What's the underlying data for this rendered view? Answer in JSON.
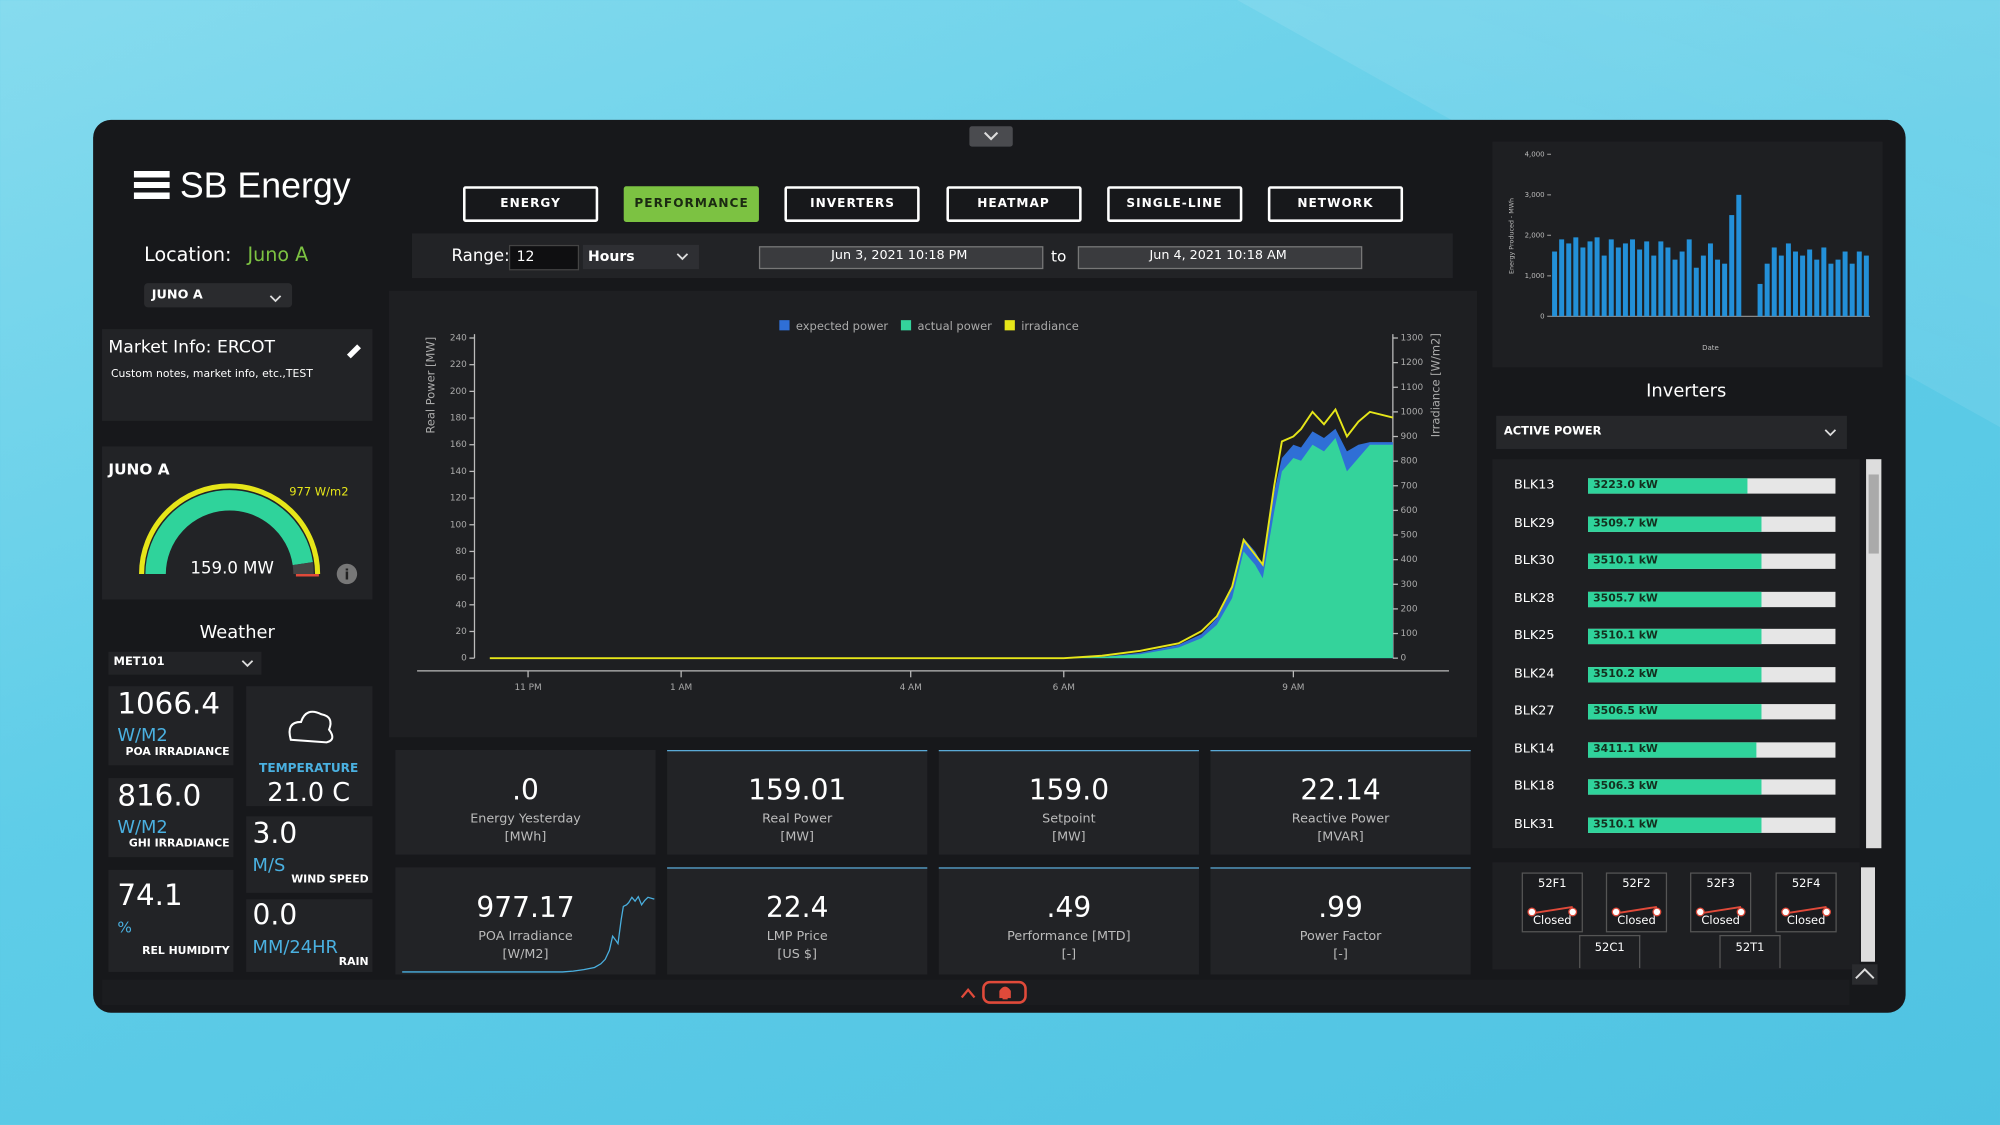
{
  "header": {
    "logo": "SB Energy",
    "location_label": "Location:",
    "location": "Juno A",
    "site": "JUNO A"
  },
  "tabs": {
    "items": [
      "ENERGY",
      "PERFORMANCE",
      "INVERTERS",
      "HEATMAP",
      "SINGLE-LINE",
      "NETWORK"
    ],
    "active": 1
  },
  "range": {
    "label": "Range:",
    "value": "12",
    "unit": "Hours",
    "start": "Jun 3, 2021 10:18 PM",
    "to": "to",
    "end": "Jun 4, 2021 10:18 AM"
  },
  "market": {
    "title": "Market Info: ERCOT",
    "note": "Custom notes, market info, etc.,TEST"
  },
  "gauge": {
    "title": "JUNO A",
    "irradiance": "977 W/m2",
    "power": "159.0 MW"
  },
  "weather": {
    "title": "Weather",
    "station": "MET101",
    "poa": {
      "value": "1066.4",
      "unit": "W/M2",
      "label": "POA IRRADIANCE"
    },
    "ghi": {
      "value": "816.0",
      "unit": "W/M2",
      "label": "GHI IRRADIANCE"
    },
    "humidity": {
      "value": "74.1",
      "unit": "%",
      "label": "REL HUMIDITY"
    },
    "temperature": {
      "label": "TEMPERATURE",
      "value": "21.0 C"
    },
    "wind": {
      "value": "3.0",
      "unit": "M/S",
      "label": "WIND SPEED"
    },
    "rain": {
      "value": "0.0",
      "unit": "MM/24HR",
      "label": "RAIN"
    }
  },
  "stats": [
    {
      "value": ".0",
      "label": "Energy Yesterday",
      "unit": "[MWh]"
    },
    {
      "value": "159.01",
      "label": "Real Power",
      "unit": "[MW]"
    },
    {
      "value": "159.0",
      "label": "Setpoint",
      "unit": "[MW]"
    },
    {
      "value": "22.14",
      "label": "Reactive Power",
      "unit": "[MVAR]"
    },
    {
      "value": "977.17",
      "label": "POA Irradiance",
      "unit": "[W/M2]"
    },
    {
      "value": "22.4",
      "label": "LMP Price",
      "unit": "[US $]"
    },
    {
      "value": ".49",
      "label": "Performance [MTD]",
      "unit": "[-]"
    },
    {
      "value": ".99",
      "label": "Power Factor",
      "unit": "[-]"
    }
  ],
  "chart_data": [
    {
      "type": "area",
      "ylabel": "Real Power [MW]",
      "y2label": "Irradiance [W/m2]",
      "x": [
        22.5,
        23,
        24,
        25,
        26,
        27,
        28,
        29,
        30,
        30.5,
        31,
        31.5,
        31.8,
        32,
        32.2,
        32.35,
        32.5,
        32.6,
        32.75,
        32.85,
        33,
        33.1,
        33.25,
        33.4,
        33.55,
        33.7,
        33.85,
        34,
        34.3
      ],
      "xlim": [
        22.3,
        34.3
      ],
      "xticks": [
        {
          "value": 23,
          "label": "11 PM"
        },
        {
          "value": 25,
          "label": "1 AM"
        },
        {
          "value": 28,
          "label": "4 AM"
        },
        {
          "value": 30,
          "label": "6 AM"
        },
        {
          "value": 33,
          "label": "9 AM"
        }
      ],
      "ylim": [
        0,
        240
      ],
      "yticks": [
        0,
        20,
        40,
        60,
        80,
        100,
        120,
        140,
        160,
        180,
        200,
        220,
        240
      ],
      "y2lim": [
        0,
        1300
      ],
      "y2ticks": [
        0,
        100,
        200,
        300,
        400,
        500,
        600,
        700,
        800,
        900,
        1000,
        1100,
        1200,
        1300
      ],
      "series": [
        {
          "name": "expected power",
          "color": "#2f6fd6",
          "values": [
            0,
            0,
            0,
            0,
            0,
            0,
            0,
            0,
            0,
            1,
            4,
            10,
            18,
            30,
            52,
            90,
            80,
            70,
            125,
            150,
            160,
            158,
            170,
            165,
            172,
            155,
            160,
            162,
            162
          ]
        },
        {
          "name": "actual power",
          "color": "#34d39b",
          "values": [
            0,
            0,
            0,
            0,
            0,
            0,
            0,
            0,
            0,
            1,
            3,
            8,
            15,
            25,
            45,
            80,
            70,
            60,
            110,
            140,
            150,
            148,
            160,
            155,
            165,
            140,
            150,
            160,
            160
          ]
        },
        {
          "name": "irradiance",
          "color": "#e6e619",
          "axis": "y2",
          "values": [
            0,
            0,
            0,
            0,
            0,
            0,
            0,
            0,
            0,
            10,
            30,
            60,
            110,
            170,
            290,
            480,
            420,
            380,
            700,
            880,
            900,
            930,
            1000,
            950,
            1010,
            900,
            960,
            1000,
            977
          ]
        }
      ]
    },
    {
      "type": "bar",
      "ylabel": "Energy Produced - MWh",
      "xlabel": "Date",
      "color": "#2390d8",
      "categories": [
        null,
        null,
        null,
        null,
        null,
        null,
        null,
        null,
        null,
        null,
        null,
        null,
        null,
        null,
        null,
        null,
        null,
        null,
        null,
        null,
        null,
        null,
        null,
        null,
        null,
        null,
        null,
        null,
        null,
        null,
        null,
        null,
        null,
        null,
        null,
        null,
        null,
        null,
        null,
        null,
        null,
        null,
        null,
        null,
        null
      ],
      "values": [
        1600,
        1900,
        1800,
        1950,
        1700,
        1850,
        1950,
        1500,
        1900,
        1700,
        1800,
        1900,
        1650,
        1850,
        1500,
        1850,
        1700,
        1400,
        1600,
        1900,
        1200,
        1500,
        1800,
        1400,
        1300,
        2500,
        3000,
        0,
        0,
        800,
        1300,
        1700,
        1500,
        1800,
        1600,
        1500,
        1650,
        1400,
        1700,
        1300,
        1400,
        1600,
        1300,
        1600,
        1500
      ],
      "ylim": [
        0,
        4000
      ],
      "yticks": [
        0,
        {
          "value": 1000,
          "label": "1,000"
        },
        {
          "value": 2000,
          "label": "2,000"
        },
        {
          "value": 3000,
          "label": "3,000"
        },
        {
          "value": 4000,
          "label": "4,000"
        }
      ]
    }
  ],
  "inverters": {
    "title": "Inverters",
    "metric": "ACTIVE POWER",
    "xlim": [
      0,
      5000
    ],
    "names": [
      "BLK13",
      "BLK29",
      "BLK30",
      "BLK28",
      "BLK25",
      "BLK24",
      "BLK27",
      "BLK14",
      "BLK18",
      "BLK31"
    ],
    "values": [
      3223.0,
      3509.7,
      3510.1,
      3505.7,
      3510.1,
      3510.2,
      3506.5,
      3411.1,
      3506.3,
      3510.1
    ],
    "value_labels": [
      "3223.0 kW",
      "3509.7 kW",
      "3510.1 kW",
      "3505.7 kW",
      "3510.1 kW",
      "3510.2 kW",
      "3506.5 kW",
      "3411.1 kW",
      "3506.3 kW",
      "3510.1 kW"
    ]
  },
  "breakers": {
    "items": [
      {
        "name": "52F1",
        "state": "Closed"
      },
      {
        "name": "52F2",
        "state": "Closed"
      },
      {
        "name": "52F3",
        "state": "Closed"
      },
      {
        "name": "52F4",
        "state": "Closed"
      }
    ],
    "buses": [
      "52C1",
      "52T1"
    ]
  }
}
